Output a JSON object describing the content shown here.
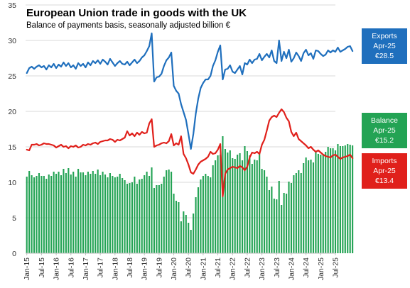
{
  "chart_data": {
    "type": "bar+line",
    "title": "European Union trade in goods with the UK",
    "subtitle": "Balance of payments basis, seasonally adjusted billion €",
    "ylim": [
      0,
      35
    ],
    "y_ticks": [
      "0",
      "5",
      "10",
      "15",
      "20",
      "25",
      "30",
      "35"
    ],
    "x_ticks": [
      "Jan-15",
      "Jul-15",
      "Jan-16",
      "Jul-16",
      "Jan-17",
      "Jul-17",
      "Jan-18",
      "Jul-18",
      "Jan-19",
      "Jul-19",
      "Jan-20",
      "Jul-20",
      "Jan-21",
      "Jul-21",
      "Jan-22",
      "Jul-22",
      "Jan-23",
      "Jul-23",
      "Jan-24",
      "Jul-24",
      "Jan-25",
      "Jul-25"
    ],
    "x_start": "Jan-15",
    "x_end": "Apr-25",
    "grid": true,
    "legend_position": "right",
    "series": [
      {
        "name": "Exports",
        "type": "line",
        "color": "#1f6fbd",
        "values": [
          25.4,
          26.1,
          26.3,
          26.0,
          26.3,
          26.5,
          26.2,
          26.4,
          25.9,
          26.5,
          26.2,
          26.7,
          26.1,
          26.6,
          26.3,
          26.9,
          26.4,
          26.8,
          26.2,
          26.5,
          26.0,
          26.8,
          26.4,
          26.7,
          26.2,
          26.9,
          26.5,
          27.1,
          26.8,
          27.2,
          26.7,
          27.3,
          27.0,
          26.6,
          27.4,
          26.9,
          26.4,
          26.8,
          27.1,
          26.7,
          26.6,
          27.0,
          26.5,
          26.9,
          27.3,
          26.8,
          27.1,
          27.6,
          27.9,
          28.5,
          29.2,
          31.0,
          24.2,
          24.8,
          24.9,
          25.3,
          26.4,
          27.2,
          27.6,
          28.3,
          23.6,
          22.9,
          22.5,
          21.0,
          19.9,
          18.8,
          16.8,
          14.7,
          16.8,
          19.7,
          21.8,
          23.3,
          24.0,
          24.5,
          24.5,
          25.0,
          26.4,
          27.2,
          28.4,
          29.3,
          24.5,
          25.9,
          26.0,
          26.5,
          25.6,
          25.4,
          25.9,
          26.4,
          25.2,
          26.8,
          26.6,
          27.3,
          26.8,
          27.3,
          27.4,
          28.1,
          27.2,
          27.7,
          28.1,
          27.6,
          28.6,
          27.1,
          26.8,
          30.0,
          27.1,
          28.4,
          27.5,
          28.7,
          27.0,
          27.5,
          28.3,
          27.8,
          27.1,
          28.2,
          28.7,
          27.9,
          28.2,
          27.4,
          28.6,
          28.5,
          28.1,
          27.8,
          28.0,
          28.6,
          28.3,
          28.6,
          28.4,
          29.0,
          28.4,
          28.6,
          28.8,
          29.1,
          29.2,
          28.5
        ]
      },
      {
        "name": "Imports",
        "type": "line",
        "color": "#e0201b",
        "values": [
          14.6,
          14.5,
          15.3,
          15.3,
          15.4,
          15.2,
          15.3,
          15.5,
          15.4,
          15.4,
          15.3,
          15.2,
          14.9,
          15.1,
          15.3,
          15.0,
          15.1,
          14.8,
          15.1,
          15.0,
          15.2,
          14.9,
          15.0,
          15.3,
          15.2,
          15.4,
          15.3,
          15.5,
          15.6,
          15.4,
          15.7,
          15.8,
          15.9,
          15.9,
          16.1,
          16.0,
          15.7,
          16.0,
          15.9,
          16.1,
          16.3,
          17.2,
          16.6,
          16.9,
          16.5,
          17.0,
          16.7,
          17.1,
          16.9,
          17.0,
          18.3,
          18.9,
          15.0,
          15.2,
          15.3,
          15.5,
          15.6,
          15.5,
          15.8,
          16.8,
          15.2,
          15.5,
          15.3,
          16.5,
          14.0,
          13.4,
          12.5,
          11.4,
          11.2,
          11.8,
          12.5,
          12.9,
          13.1,
          13.3,
          13.6,
          14.3,
          14.0,
          14.1,
          14.6,
          15.4,
          8.0,
          11.2,
          11.8,
          12.0,
          12.2,
          12.1,
          12.0,
          12.3,
          12.1,
          11.7,
          12.2,
          13.5,
          14.2,
          14.1,
          14.3,
          14.0,
          15.3,
          16.0,
          17.3,
          18.7,
          19.2,
          19.4,
          19.2,
          19.8,
          20.3,
          19.9,
          19.1,
          18.6,
          17.1,
          16.5,
          17.0,
          16.1,
          15.8,
          15.5,
          15.2,
          14.8,
          15.0,
          14.6,
          14.3,
          14.5,
          14.2,
          13.9,
          13.7,
          13.6,
          13.5,
          13.8,
          13.9,
          13.6,
          13.3,
          13.5,
          13.6,
          13.7,
          13.9,
          13.4
        ]
      },
      {
        "name": "Balance",
        "type": "bar",
        "color": "#23a354",
        "values": [
          10.8,
          11.6,
          11.0,
          10.7,
          10.9,
          11.3,
          10.9,
          10.9,
          10.5,
          11.1,
          10.9,
          11.5,
          11.2,
          11.5,
          11.0,
          11.9,
          11.3,
          12.0,
          11.1,
          11.5,
          10.8,
          11.9,
          11.4,
          11.4,
          11.0,
          11.5,
          11.2,
          11.6,
          11.2,
          11.8,
          11.0,
          11.5,
          11.1,
          10.7,
          11.3,
          10.9,
          10.7,
          10.8,
          11.2,
          10.6,
          10.3,
          9.8,
          9.9,
          10.0,
          10.8,
          9.8,
          10.4,
          10.5,
          11.0,
          11.5,
          10.9,
          12.1,
          9.2,
          9.6,
          9.6,
          9.8,
          10.8,
          11.7,
          11.8,
          11.5,
          8.4,
          7.4,
          7.2,
          4.5,
          5.9,
          5.4,
          4.3,
          3.3,
          5.6,
          7.9,
          9.3,
          10.4,
          10.9,
          11.2,
          10.9,
          10.7,
          12.4,
          13.1,
          13.8,
          13.9,
          16.5,
          14.7,
          14.2,
          14.5,
          13.4,
          13.3,
          13.9,
          14.1,
          13.1,
          15.1,
          14.4,
          13.8,
          12.6,
          13.2,
          13.1,
          14.1,
          11.9,
          11.7,
          10.8,
          8.9,
          9.4,
          7.7,
          7.6,
          10.2,
          6.8,
          8.5,
          8.4,
          10.1,
          9.9,
          11.0,
          11.3,
          11.7,
          11.3,
          12.7,
          13.5,
          13.1,
          13.2,
          12.8,
          14.3,
          14.0,
          13.9,
          13.9,
          14.3,
          15.0,
          14.8,
          14.8,
          14.5,
          15.4,
          15.1,
          15.1,
          15.2,
          15.4,
          15.3,
          15.2
        ]
      }
    ]
  },
  "legend": [
    {
      "key": "exports",
      "name": "Exports",
      "period": "Apr-25",
      "value": "€28.5",
      "color": "#1f6fbd"
    },
    {
      "key": "balance",
      "name": "Balance",
      "period": "Apr-25",
      "value": "€15.2",
      "color": "#23a354"
    },
    {
      "key": "imports",
      "name": "Imports",
      "period": "Apr-25",
      "value": "€13.4",
      "color": "#e0201b"
    }
  ]
}
